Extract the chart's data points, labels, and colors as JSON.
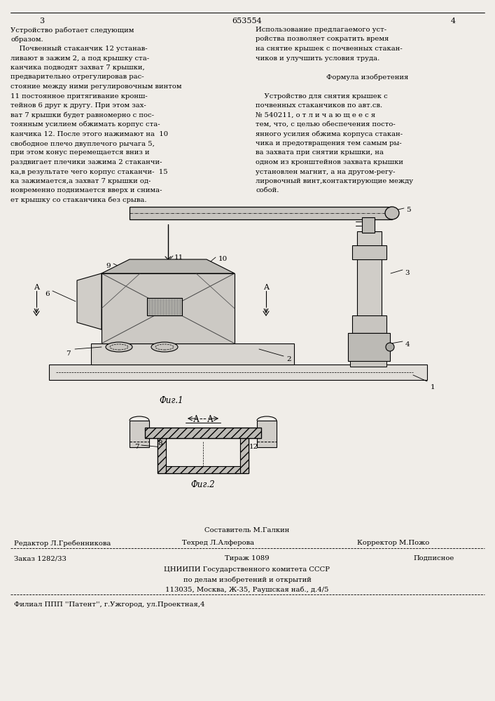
{
  "bg_color": "#f0ede8",
  "page_width": 7.07,
  "page_height": 10.0,
  "page_num_left": "3",
  "page_num_center": "653554",
  "page_num_right": "4",
  "col_left_lines": [
    "Устройство работает следующим",
    "образом.",
    "    Почвенный стаканчик 12 устанав-",
    "ливают в зажим 2, а под крышку ста-",
    "канчика подводят захват 7 крышки,",
    "предварительно отрегулировав рас-",
    "стояние между ними регулировочным винтом",
    "11 постоянное притягивание кронш-",
    "тейнов 6 друг к другу. При этом зах-",
    "ват 7 крышки будет равномерно с пос-",
    "тоянным усилием обжимать корпус ста-",
    "канчика 12. После этого нажимают на  10",
    "свободное плечо двуплечого рычага 5,",
    "при этом конус перемещается вниз и",
    "раздвигает плечики зажима 2 стаканчи-",
    "ка,в результате чего корпус стаканчи-  15",
    "ка зажимается,а захват 7 крышки од-",
    "новременно поднимается вверх и снима-",
    "ет крышку со стаканчика без срыва."
  ],
  "col_right_lines": [
    "Использование предлагаемого уст-",
    "ройства позволяет сократить время",
    "на снятие крышек с почвенных стакан-",
    "чиков и улучшить условия труда.",
    "",
    "        Формула изобретения",
    "",
    "    Устройство для снятия крышек с",
    "почвенных стаканчиков по авт.св.",
    "№ 540211, о т л и ч а ю щ е е с я",
    "тем, что, с целью обеспечения посто-",
    "янного усилия обжима корпуса стакан-",
    "чика и предотвращения тем самым ры-",
    "ва захвата при снятии крышки, на",
    "одном из кронштейнов захвата крышки",
    "установлен магнит, а на другом-регу-",
    "лировочный винт,контактирующие между",
    "собой."
  ],
  "footer_sestavitel": "Составитель М.Галкин",
  "footer_editor": "Редактор Л.Гребенникова",
  "footer_tehred": "Техред Л.Алферова",
  "footer_korrektor": "Корректор М.Пожо",
  "footer_zakaz": "Заказ 1282/33",
  "footer_tirazh": "Тираж 1089",
  "footer_podpisnoe": "Подписное",
  "footer_tsniipi": "ЦНИИПИ Государственного комитета СССР",
  "footer_po_delam": "по делам изобретений и открытий",
  "footer_address": "113035, Москва, Ж-35, Раушская наб., д.4/5",
  "footer_filial": "Филиал ППП ''Патент'', г.Ужгород, ул.Проектная,4"
}
